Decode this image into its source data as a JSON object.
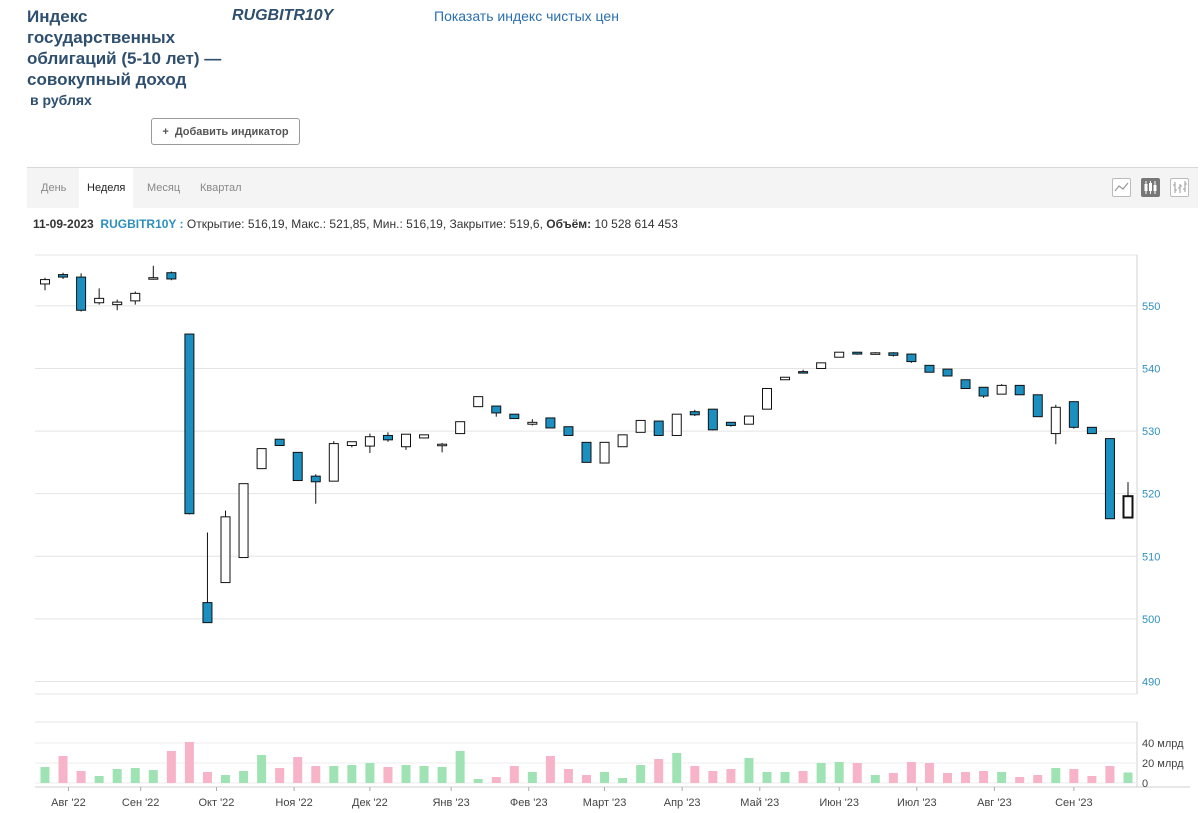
{
  "header": {
    "title": "Индекс государственных облигаций (5-10 лет) — совокупный доход",
    "title_sub": "в рублях",
    "ticker": "RUGBITR10Y",
    "clean_index_link": "Показать индекс чистых цен",
    "add_indicator_label": "Добавить индикатор",
    "add_indicator_icon": "+"
  },
  "period_tabs": [
    {
      "label": "День",
      "active": false
    },
    {
      "label": "Неделя",
      "active": true
    },
    {
      "label": "Месяц",
      "active": false
    },
    {
      "label": "Квартал",
      "active": false
    }
  ],
  "chart_types": [
    {
      "icon": "line-chart-icon",
      "active": false
    },
    {
      "icon": "candlestick-chart-icon",
      "active": true
    },
    {
      "icon": "ohlc-bar-chart-icon",
      "active": false
    }
  ],
  "info": {
    "date": "11-09-2023",
    "ticker": "RUGBITR10Y :",
    "open_label": "Открытие:",
    "open_value": "516,19",
    "high_label": "Макс.:",
    "high_value": "521,85",
    "low_label": "Мин.:",
    "low_value": "516,19",
    "close_label": "Закрытие:",
    "close_value": "519,6",
    "volume_label": "Объём:",
    "volume_value": "10 528 614 453"
  },
  "colors": {
    "down": "#1b8fc0",
    "up": "#ffffff",
    "vol_up": "#9fe3b4",
    "vol_down": "#f7b3c7",
    "axis_label": "#2e8fbd",
    "grid": "#e4e4e4"
  },
  "chart_data": {
    "type": "candlestick",
    "ylim": [
      488,
      557
    ],
    "yticks": [
      490,
      500,
      510,
      520,
      530,
      540,
      550
    ],
    "volume_ticks": [
      {
        "value": 0,
        "label": "0"
      },
      {
        "value": 20,
        "label": "20 млрд"
      },
      {
        "value": 40,
        "label": "40 млрд"
      }
    ],
    "volume_ylim": [
      0,
      45
    ],
    "x_month_labels": [
      {
        "label": "Авг '22",
        "at": 1.3
      },
      {
        "label": "Сен '22",
        "at": 5.3
      },
      {
        "label": "Окт '22",
        "at": 9.5
      },
      {
        "label": "Ноя '22",
        "at": 13.8
      },
      {
        "label": "Дек '22",
        "at": 18.0
      },
      {
        "label": "Янв '23",
        "at": 22.5
      },
      {
        "label": "Фев '23",
        "at": 26.8
      },
      {
        "label": "Март '23",
        "at": 31.0
      },
      {
        "label": "Апр '23",
        "at": 35.3
      },
      {
        "label": "Май '23",
        "at": 39.6
      },
      {
        "label": "Июн '23",
        "at": 44.0
      },
      {
        "label": "Июл '23",
        "at": 48.3
      },
      {
        "label": "Авг '23",
        "at": 52.6
      },
      {
        "label": "Сен '23",
        "at": 57.0
      }
    ],
    "candles": [
      {
        "o": 553.5,
        "h": 554.5,
        "l": 552.5,
        "c": 554.2,
        "v": 16
      },
      {
        "o": 555.0,
        "h": 555.3,
        "l": 554.3,
        "c": 554.6,
        "v": 27
      },
      {
        "o": 554.6,
        "h": 555.2,
        "l": 549.1,
        "c": 549.3,
        "v": 12
      },
      {
        "o": 550.5,
        "h": 552.8,
        "l": 550.2,
        "c": 551.2,
        "v": 7
      },
      {
        "o": 550.2,
        "h": 551.0,
        "l": 549.3,
        "c": 550.6,
        "v": 14
      },
      {
        "o": 550.8,
        "h": 552.3,
        "l": 550.2,
        "c": 552.0,
        "v": 15
      },
      {
        "o": 554.3,
        "h": 556.4,
        "l": 554.2,
        "c": 554.5,
        "v": 13
      },
      {
        "o": 555.3,
        "h": 555.5,
        "l": 554.1,
        "c": 554.3,
        "v": 32
      },
      {
        "o": 545.5,
        "h": 545.5,
        "l": 516.7,
        "c": 516.8,
        "v": 41
      },
      {
        "o": 502.6,
        "h": 513.8,
        "l": 499.4,
        "c": 499.4,
        "v": 11
      },
      {
        "o": 505.8,
        "h": 517.3,
        "l": 505.8,
        "c": 516.3,
        "v": 8
      },
      {
        "o": 509.8,
        "h": 521.6,
        "l": 509.8,
        "c": 521.6,
        "v": 12
      },
      {
        "o": 524.0,
        "h": 527.2,
        "l": 524.0,
        "c": 527.2,
        "v": 28
      },
      {
        "o": 528.7,
        "h": 528.7,
        "l": 527.7,
        "c": 527.7,
        "v": 15
      },
      {
        "o": 526.6,
        "h": 526.6,
        "l": 522.1,
        "c": 522.1,
        "v": 26
      },
      {
        "o": 522.8,
        "h": 523.1,
        "l": 518.4,
        "c": 521.9,
        "v": 17
      },
      {
        "o": 522.0,
        "h": 528.4,
        "l": 522.0,
        "c": 528.0,
        "v": 17
      },
      {
        "o": 527.7,
        "h": 528.3,
        "l": 527.4,
        "c": 528.3,
        "v": 18
      },
      {
        "o": 527.6,
        "h": 529.6,
        "l": 526.5,
        "c": 529.1,
        "v": 20
      },
      {
        "o": 529.3,
        "h": 529.8,
        "l": 528.3,
        "c": 528.6,
        "v": 16
      },
      {
        "o": 527.5,
        "h": 529.5,
        "l": 527.0,
        "c": 529.5,
        "v": 18
      },
      {
        "o": 528.9,
        "h": 529.4,
        "l": 528.9,
        "c": 529.4,
        "v": 17
      },
      {
        "o": 527.9,
        "h": 528.1,
        "l": 526.6,
        "c": 527.9,
        "v": 16
      },
      {
        "o": 529.6,
        "h": 531.5,
        "l": 529.6,
        "c": 531.5,
        "v": 32
      },
      {
        "o": 533.9,
        "h": 535.5,
        "l": 533.9,
        "c": 535.5,
        "v": 4
      },
      {
        "o": 534.0,
        "h": 534.0,
        "l": 532.3,
        "c": 532.9,
        "v": 6
      },
      {
        "o": 532.7,
        "h": 532.7,
        "l": 532.0,
        "c": 532.0,
        "v": 17
      },
      {
        "o": 531.1,
        "h": 531.9,
        "l": 530.9,
        "c": 531.4,
        "v": 11
      },
      {
        "o": 532.1,
        "h": 532.1,
        "l": 530.5,
        "c": 530.5,
        "v": 27
      },
      {
        "o": 530.7,
        "h": 530.7,
        "l": 529.3,
        "c": 529.3,
        "v": 14
      },
      {
        "o": 528.2,
        "h": 528.2,
        "l": 525.0,
        "c": 525.0,
        "v": 8
      },
      {
        "o": 524.9,
        "h": 528.2,
        "l": 524.9,
        "c": 528.2,
        "v": 11
      },
      {
        "o": 527.5,
        "h": 529.4,
        "l": 527.5,
        "c": 529.4,
        "v": 5
      },
      {
        "o": 529.8,
        "h": 531.7,
        "l": 529.8,
        "c": 531.7,
        "v": 18
      },
      {
        "o": 531.6,
        "h": 531.6,
        "l": 529.3,
        "c": 529.3,
        "v": 24
      },
      {
        "o": 529.3,
        "h": 532.7,
        "l": 529.3,
        "c": 532.7,
        "v": 30
      },
      {
        "o": 533.1,
        "h": 533.4,
        "l": 532.4,
        "c": 532.6,
        "v": 17
      },
      {
        "o": 533.5,
        "h": 533.5,
        "l": 530.1,
        "c": 530.2,
        "v": 12
      },
      {
        "o": 531.4,
        "h": 531.4,
        "l": 530.7,
        "c": 530.9,
        "v": 14
      },
      {
        "o": 531.1,
        "h": 532.4,
        "l": 531.1,
        "c": 532.4,
        "v": 25
      },
      {
        "o": 533.5,
        "h": 536.8,
        "l": 533.5,
        "c": 536.8,
        "v": 11
      },
      {
        "o": 538.2,
        "h": 538.6,
        "l": 538.2,
        "c": 538.6,
        "v": 11
      },
      {
        "o": 539.5,
        "h": 539.8,
        "l": 539.2,
        "c": 539.4,
        "v": 12
      },
      {
        "o": 540.0,
        "h": 540.9,
        "l": 540.0,
        "c": 540.9,
        "v": 20
      },
      {
        "o": 541.8,
        "h": 542.6,
        "l": 541.8,
        "c": 542.6,
        "v": 21
      },
      {
        "o": 542.6,
        "h": 542.6,
        "l": 542.2,
        "c": 542.3,
        "v": 20
      },
      {
        "o": 542.4,
        "h": 542.6,
        "l": 542.3,
        "c": 542.5,
        "v": 8
      },
      {
        "o": 542.5,
        "h": 542.6,
        "l": 541.9,
        "c": 542.1,
        "v": 10
      },
      {
        "o": 542.3,
        "h": 542.4,
        "l": 540.9,
        "c": 541.1,
        "v": 21
      },
      {
        "o": 540.5,
        "h": 540.5,
        "l": 539.4,
        "c": 539.4,
        "v": 20
      },
      {
        "o": 539.9,
        "h": 539.9,
        "l": 538.8,
        "c": 538.8,
        "v": 10
      },
      {
        "o": 538.2,
        "h": 538.2,
        "l": 536.8,
        "c": 536.8,
        "v": 11
      },
      {
        "o": 537.0,
        "h": 537.0,
        "l": 535.3,
        "c": 535.6,
        "v": 12
      },
      {
        "o": 535.9,
        "h": 537.5,
        "l": 535.9,
        "c": 537.3,
        "v": 11
      },
      {
        "o": 537.3,
        "h": 537.3,
        "l": 535.8,
        "c": 535.8,
        "v": 6
      },
      {
        "o": 535.8,
        "h": 535.8,
        "l": 532.3,
        "c": 532.3,
        "v": 8
      },
      {
        "o": 529.6,
        "h": 534.2,
        "l": 527.9,
        "c": 533.8,
        "v": 15
      },
      {
        "o": 534.7,
        "h": 534.7,
        "l": 530.4,
        "c": 530.6,
        "v": 14
      },
      {
        "o": 530.6,
        "h": 530.6,
        "l": 529.6,
        "c": 529.6,
        "v": 7
      },
      {
        "o": 528.8,
        "h": 528.8,
        "l": 516.0,
        "c": 516.0,
        "v": 17
      },
      {
        "o": 516.19,
        "h": 521.85,
        "l": 516.19,
        "c": 519.6,
        "v": 10.5
      }
    ]
  }
}
